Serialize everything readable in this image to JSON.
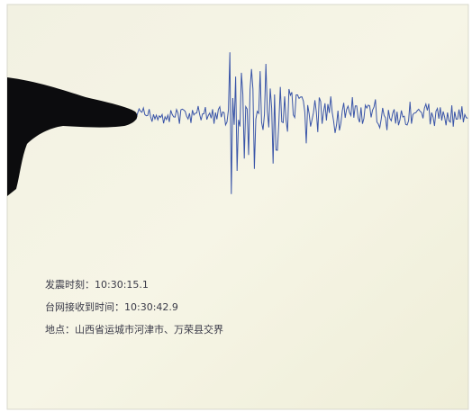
{
  "screen": {
    "lines": [
      "发震时刻：10:30:15.1",
      "台网接收到时间：10:30:42.9",
      "地点：山西省运城市河津市、万荣县交界"
    ]
  }
}
